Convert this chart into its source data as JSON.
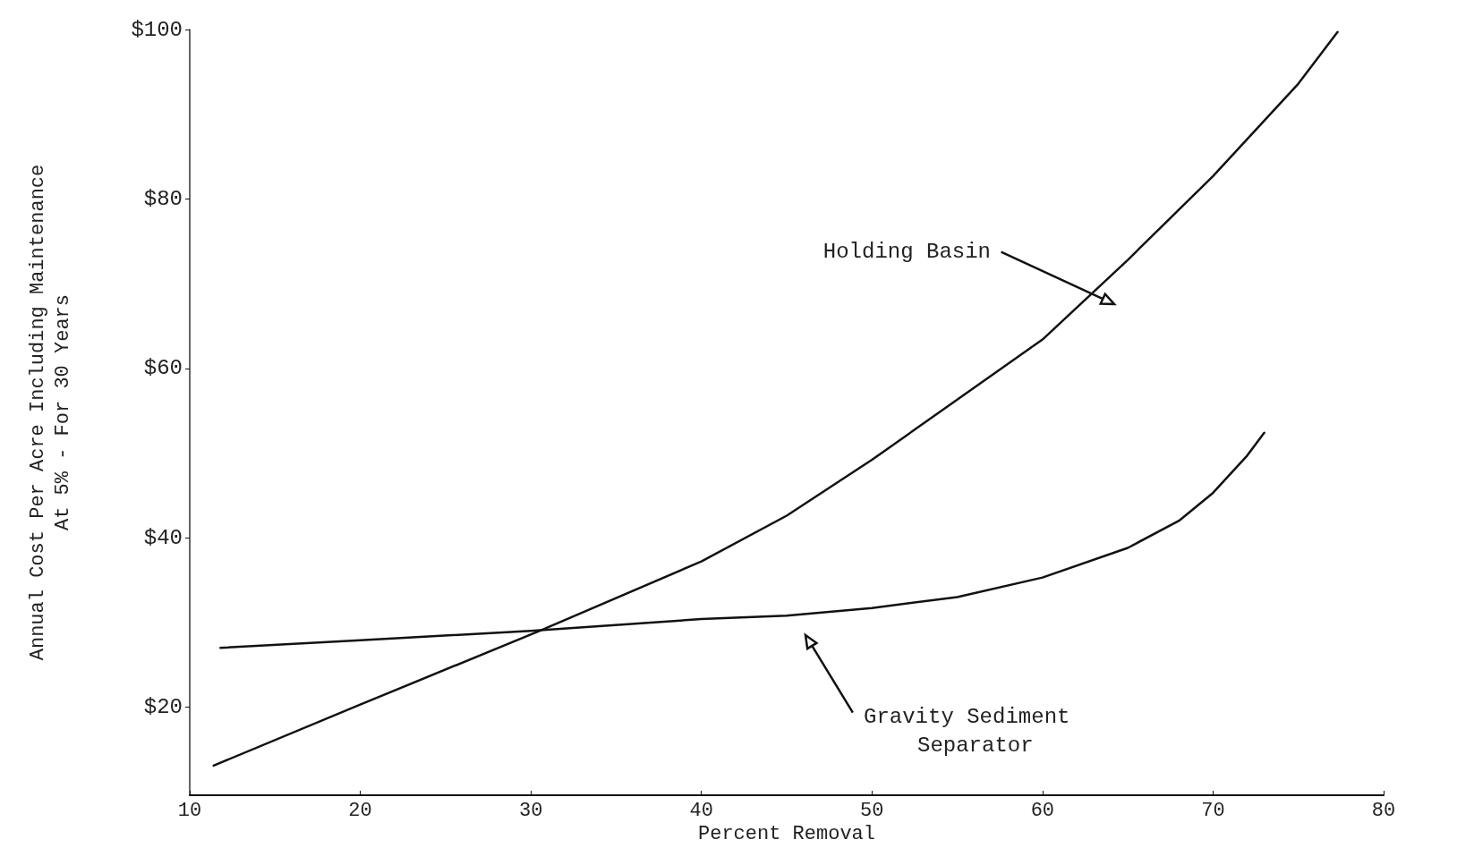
{
  "chart_data": {
    "type": "line",
    "xlabel": "Percent Removal",
    "ylabel": "Annual Cost Per Acre Including Maintenance\nAt 5% - For 30 Years",
    "series": [
      {
        "color": "#111111",
        "x": [
          11.4,
          20,
          30.5,
          40,
          45,
          50,
          55,
          60,
          65,
          70,
          75,
          77.3
        ],
        "values": [
          13.1,
          20.3,
          29,
          37.2,
          42.6,
          49.2,
          56.3,
          63.4,
          72.8,
          82.7,
          93.6,
          99.7
        ]
      },
      {
        "color": "#111111",
        "x": [
          11.8,
          20,
          30,
          40,
          45,
          50,
          55,
          60,
          65,
          68,
          70,
          72,
          73
        ],
        "values": [
          27,
          27.9,
          29,
          30.4,
          30.8,
          31.7,
          33,
          35.3,
          38.8,
          42,
          45.3,
          49.7,
          52.4
        ]
      }
    ],
    "annotations": [
      "Holding Basin",
      "Gravity Sediment\nSeparator"
    ],
    "xlim": [
      10,
      80
    ],
    "xticks": [
      10,
      20,
      30,
      40,
      50,
      60,
      70,
      80
    ],
    "ylim": [
      9.6,
      100
    ],
    "yticks": [
      {
        "value": 20,
        "label": "$20"
      },
      {
        "value": 40,
        "label": "$40"
      },
      {
        "value": 60,
        "label": "$60"
      },
      {
        "value": 80,
        "label": "$80"
      },
      {
        "value": 100,
        "label": "$100"
      }
    ],
    "grid": false,
    "marker": "none",
    "line_style": "solid"
  }
}
